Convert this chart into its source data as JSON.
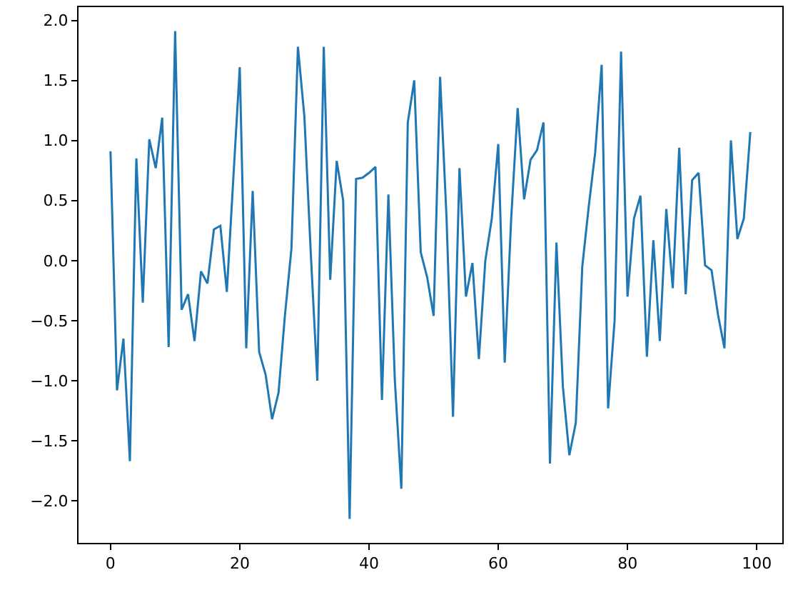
{
  "chart_data": {
    "type": "line",
    "x": [
      0,
      1,
      2,
      3,
      4,
      5,
      6,
      7,
      8,
      9,
      10,
      11,
      12,
      13,
      14,
      15,
      16,
      17,
      18,
      19,
      20,
      21,
      22,
      23,
      24,
      25,
      26,
      27,
      28,
      29,
      30,
      31,
      32,
      33,
      34,
      35,
      36,
      37,
      38,
      39,
      40,
      41,
      42,
      43,
      44,
      45,
      46,
      47,
      48,
      49,
      50,
      51,
      52,
      53,
      54,
      55,
      56,
      57,
      58,
      59,
      60,
      61,
      62,
      63,
      64,
      65,
      66,
      67,
      68,
      69,
      70,
      71,
      72,
      73,
      74,
      75,
      76,
      77,
      78,
      79,
      80,
      81,
      82,
      83,
      84,
      85,
      86,
      87,
      88,
      89,
      90,
      91,
      92,
      93,
      94,
      95,
      96,
      97,
      98,
      99
    ],
    "series": [
      {
        "color": "#1f77b4",
        "values": [
          0.91,
          -1.08,
          -0.65,
          -1.67,
          0.85,
          -0.35,
          1.01,
          0.77,
          1.19,
          -0.72,
          1.91,
          -0.41,
          -0.28,
          -0.67,
          -0.09,
          -0.19,
          0.26,
          0.29,
          -0.26,
          0.68,
          1.61,
          -0.73,
          0.58,
          -0.76,
          -0.95,
          -1.32,
          -1.1,
          -0.45,
          0.1,
          1.78,
          1.2,
          0.05,
          -1.0,
          1.78,
          -0.16,
          0.83,
          0.5,
          -2.15,
          0.68,
          0.69,
          0.73,
          0.78,
          -1.16,
          0.55,
          -1.0,
          -1.9,
          1.15,
          1.5,
          0.07,
          -0.14,
          -0.46,
          1.53,
          0.35,
          -1.3,
          0.77,
          -0.3,
          -0.02,
          -0.82,
          0.0,
          0.35,
          0.97,
          -0.85,
          0.35,
          1.27,
          0.51,
          0.84,
          0.92,
          1.15,
          -1.69,
          0.15,
          -1.05,
          -1.62,
          -1.35,
          -0.05,
          0.45,
          0.9,
          1.63,
          -1.23,
          -0.5,
          1.74,
          -0.3,
          0.35,
          0.54,
          -0.8,
          0.17,
          -0.67,
          0.43,
          -0.23,
          0.94,
          -0.28,
          0.67,
          0.73,
          -0.04,
          -0.08,
          -0.45,
          -0.73,
          1.0,
          0.18,
          0.35,
          1.07
        ]
      }
    ],
    "xlim": [
      -4.95,
      103.95
    ],
    "xticks": [
      0,
      20,
      40,
      60,
      80,
      100
    ],
    "ylim": [
      -2.35,
      2.11
    ],
    "yticks": [
      {
        "value": -2,
        "label": "−2.0"
      },
      {
        "value": -1.5,
        "label": "−1.5"
      },
      {
        "value": -1,
        "label": "−1.0"
      },
      {
        "value": -0.5,
        "label": "−0.5"
      },
      {
        "value": 0,
        "label": "0.0"
      },
      {
        "value": 0.5,
        "label": "0.5"
      },
      {
        "value": 1,
        "label": "1.0"
      },
      {
        "value": 1.5,
        "label": "1.5"
      },
      {
        "value": 2,
        "label": "2.0"
      }
    ],
    "grid": false,
    "marker": "none",
    "line_style": "solid"
  }
}
